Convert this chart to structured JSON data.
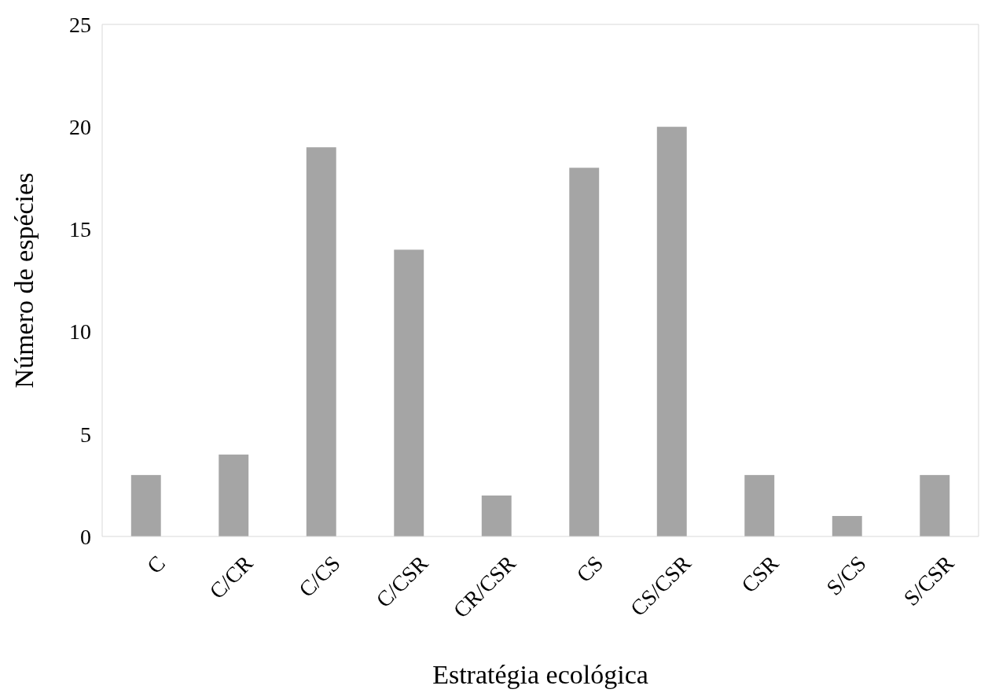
{
  "chart_data": {
    "type": "bar",
    "xlabel": "Estratégia ecológica",
    "ylabel": "Número de espécies",
    "categories": [
      "C",
      "C/CR",
      "C/CS",
      "C/CSR",
      "CR/CSR",
      "CS",
      "CS/CSR",
      "CSR",
      "S/CS",
      "S/CSR"
    ],
    "values": [
      3,
      4,
      19,
      14,
      2,
      18,
      20,
      3,
      1,
      3
    ],
    "color": "#a5a5a5",
    "ylim": [
      0,
      25
    ],
    "yticks": [
      0,
      5,
      10,
      15,
      20,
      25
    ],
    "grid": false
  }
}
